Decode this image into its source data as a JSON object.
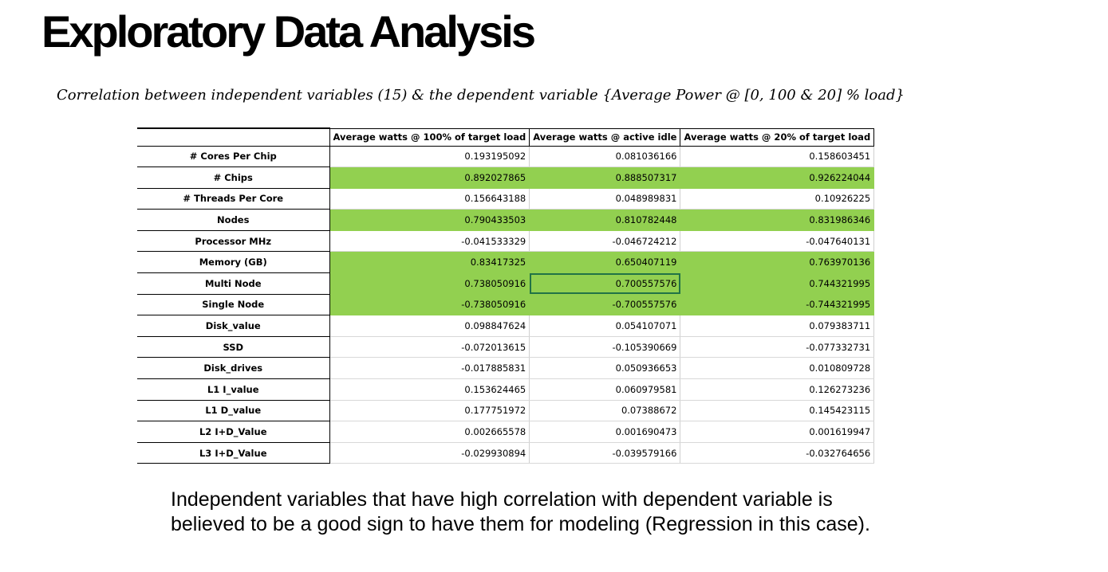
{
  "page": {
    "title": "Exploratory Data Analysis",
    "subtitle": "Correlation between independent variables (15) & the dependent variable {Average Power @ [0, 100 & 20] % load}",
    "note_line1": "Independent variables that have high correlation with dependent variable is",
    "note_line2": "believed to be a good sign to have them for modeling (Regression in this case)."
  },
  "table": {
    "columns": [
      "Average watts @ 100% of target load",
      "Average watts @ active idle",
      "Average watts @ 20% of target load"
    ],
    "highlight_color": "#92d050",
    "rows": [
      {
        "label": "# Cores Per Chip",
        "values": [
          "0.193195092",
          "0.081036166",
          "0.158603451"
        ],
        "highlight": false
      },
      {
        "label": "# Chips",
        "values": [
          "0.892027865",
          "0.888507317",
          "0.926224044"
        ],
        "highlight": true
      },
      {
        "label": "# Threads Per Core",
        "values": [
          "0.156643188",
          "0.048989831",
          "0.10926225"
        ],
        "highlight": false
      },
      {
        "label": "Nodes",
        "values": [
          "0.790433503",
          "0.810782448",
          "0.831986346"
        ],
        "highlight": true
      },
      {
        "label": "Processor MHz",
        "values": [
          "-0.041533329",
          "-0.046724212",
          "-0.047640131"
        ],
        "highlight": false
      },
      {
        "label": "Memory (GB)",
        "values": [
          "0.83417325",
          "0.650407119",
          "0.763970136"
        ],
        "highlight": true
      },
      {
        "label": "Multi Node",
        "values": [
          "0.738050916",
          "0.700557576",
          "0.744321995"
        ],
        "highlight": true
      },
      {
        "label": "Single Node",
        "values": [
          "-0.738050916",
          "-0.700557576",
          "-0.744321995"
        ],
        "highlight": true
      },
      {
        "label": "Disk_value",
        "values": [
          "0.098847624",
          "0.054107071",
          "0.079383711"
        ],
        "highlight": false
      },
      {
        "label": "SSD",
        "values": [
          "-0.072013615",
          "-0.105390669",
          "-0.077332731"
        ],
        "highlight": false
      },
      {
        "label": "Disk_drives",
        "values": [
          "-0.017885831",
          "0.050936653",
          "0.010809728"
        ],
        "highlight": false
      },
      {
        "label": "L1 I_value",
        "values": [
          "0.153624465",
          "0.060979581",
          "0.126273236"
        ],
        "highlight": false
      },
      {
        "label": "L1 D_value",
        "values": [
          "0.177751972",
          "0.07388672",
          "0.145423115"
        ],
        "highlight": false
      },
      {
        "label": "L2 I+D_Value",
        "values": [
          "0.002665578",
          "0.001690473",
          "0.001619947"
        ],
        "highlight": false
      },
      {
        "label": "L3 I+D_Value",
        "values": [
          "-0.029930894",
          "-0.039579166",
          "-0.032764656"
        ],
        "highlight": false
      }
    ]
  }
}
